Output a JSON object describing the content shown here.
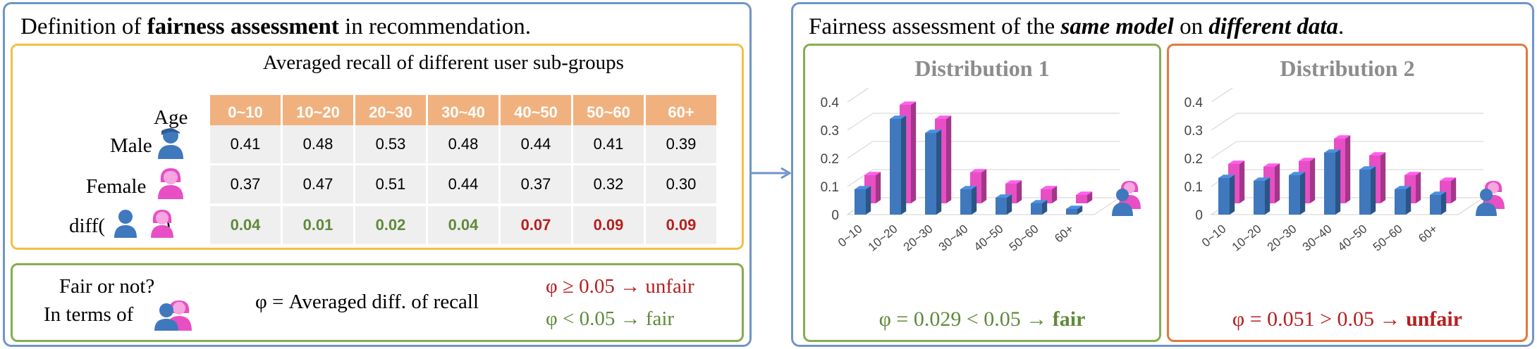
{
  "left": {
    "title_pre": "Definition of ",
    "title_bold": "fairness assessment",
    "title_post": " in recommendation.",
    "table": {
      "caption": "Averaged recall of different user sub-groups",
      "header_label": "Age",
      "columns": [
        "0~10",
        "10~20",
        "20~30",
        "30~40",
        "40~50",
        "50~60",
        "60+"
      ],
      "rows": [
        {
          "label": "Male",
          "values": [
            "0.41",
            "0.48",
            "0.53",
            "0.48",
            "0.44",
            "0.41",
            "0.39"
          ]
        },
        {
          "label": "Female",
          "values": [
            "0.37",
            "0.47",
            "0.51",
            "0.44",
            "0.37",
            "0.32",
            "0.30"
          ]
        },
        {
          "label_pre": "diff(",
          "label_comma": ",",
          "label_post": ")",
          "values": [
            "0.04",
            "0.01",
            "0.02",
            "0.04",
            "0.07",
            "0.09",
            "0.09"
          ],
          "status": [
            "fair",
            "fair",
            "fair",
            "fair",
            "unfair",
            "unfair",
            "unfair"
          ]
        }
      ]
    },
    "rule": {
      "question": "Fair or not?",
      "in_terms_of": "In terms of",
      "definition": "φ = Averaged diff. of recall",
      "unfair_rule": "φ ≥ 0.05  → unfair",
      "fair_rule": "φ < 0.05  → fair"
    }
  },
  "right": {
    "title_pre": "Fairness assessment of the ",
    "title_em1": "same model",
    "title_mid": " on ",
    "title_em2": "different data",
    "title_post": "."
  },
  "chart_data": [
    {
      "type": "bar",
      "title": "Distribution 1",
      "categories": [
        "0~10",
        "10~20",
        "20~30",
        "30~40",
        "40~50",
        "50~60",
        "60+"
      ],
      "ylim": [
        0,
        0.4
      ],
      "yticks": [
        "0",
        "0.1",
        "0.2",
        "0.3",
        "0.4"
      ],
      "series": [
        {
          "values": [
            0.09,
            0.34,
            0.29,
            0.09,
            0.06,
            0.04,
            0.02
          ],
          "color": "#3f78bd"
        },
        {
          "values": [
            0.1,
            0.35,
            0.3,
            0.11,
            0.07,
            0.05,
            0.03
          ],
          "color": "#e84fc4"
        }
      ],
      "result_pre": "φ = 0.029 < 0.05  → ",
      "result_word": "fair"
    },
    {
      "type": "bar",
      "title": "Distribution 2",
      "categories": [
        "0~10",
        "10~20",
        "20~30",
        "30~40",
        "40~50",
        "50~60",
        "60+"
      ],
      "ylim": [
        0,
        0.4
      ],
      "yticks": [
        "0",
        "0.1",
        "0.2",
        "0.3",
        "0.4"
      ],
      "series": [
        {
          "values": [
            0.13,
            0.12,
            0.14,
            0.22,
            0.16,
            0.09,
            0.07
          ],
          "color": "#3f78bd"
        },
        {
          "values": [
            0.14,
            0.13,
            0.15,
            0.23,
            0.17,
            0.1,
            0.08
          ],
          "color": "#e84fc4"
        }
      ],
      "result_pre": "φ = 0.051 > 0.05  → ",
      "result_word": "unfair"
    }
  ],
  "colors": {
    "accent_blue": "#6f95c8",
    "fair_green": "#5f8a3a",
    "unfair_red": "#b71f1f",
    "male_blue": "#3f78bd",
    "female_pink": "#e84fc4",
    "header_orange": "#f0b17e"
  }
}
